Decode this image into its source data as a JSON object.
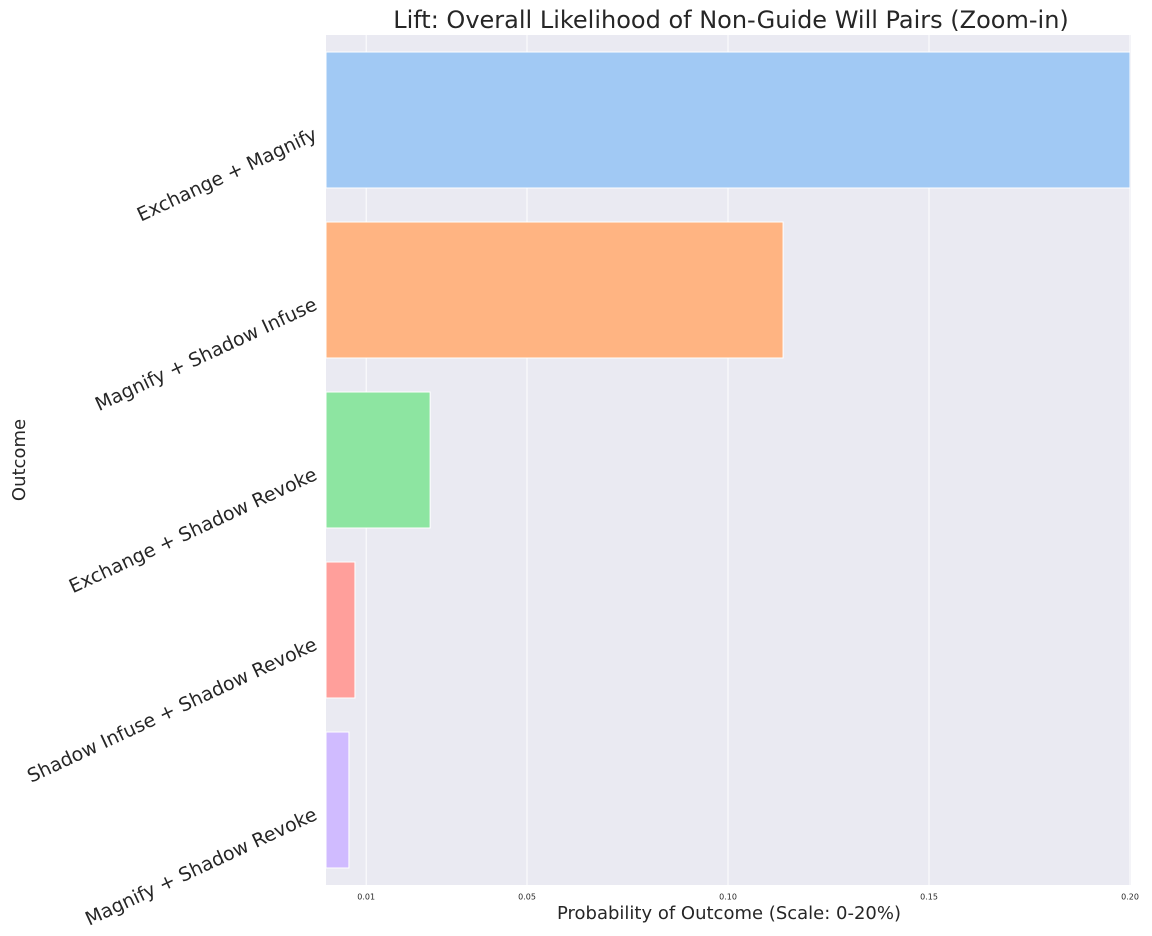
{
  "chart_data": {
    "type": "barh",
    "title": "Lift: Overall Likelihood of Non-Guide Will Pairs (Zoom-in)",
    "xlabel": "Probability of Outcome (Scale: 0-20%)",
    "ylabel": "Outcome",
    "categories": [
      "Exchange + Magnify",
      "Magnify + Shadow Infuse",
      "Exchange + Shadow Revoke",
      "Shadow Infuse + Shadow Revoke",
      "Magnify + Shadow Revoke"
    ],
    "values": [
      0.2,
      0.1137,
      0.0259,
      0.0072,
      0.0057
    ],
    "colors": [
      "#a1c9f4",
      "#ffb482",
      "#8de5a1",
      "#ff9f9b",
      "#d0bbff"
    ],
    "xlim": [
      0,
      0.2
    ],
    "xticks": [
      0.01,
      0.05,
      {
        "value": 0.1,
        "label": "0.10"
      },
      0.15,
      {
        "value": 0.2,
        "label": "0.20"
      }
    ],
    "grid": true
  }
}
